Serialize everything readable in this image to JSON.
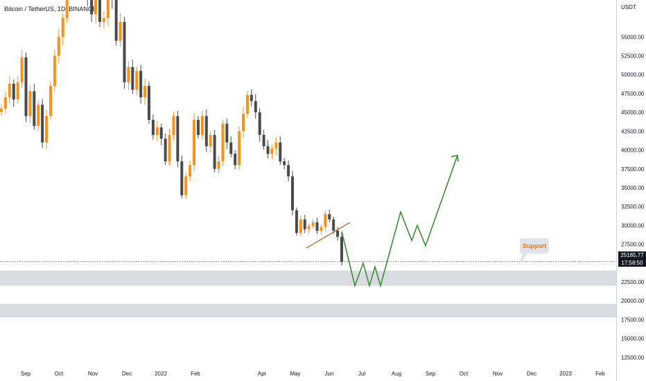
{
  "header": {
    "title": "Bitcoin / TetherUS, 1D, BINANCE",
    "currency": "USDT"
  },
  "colors": {
    "up": "#f7931a",
    "down": "#4a4a4a",
    "projection": "#3d8b37",
    "trendline": "#b5651d",
    "zone": "#d9dbe0",
    "callout": "#e0e3eb"
  },
  "price_badge": {
    "price": "25185.77",
    "countdown": "17:58:50"
  },
  "annotation": {
    "label": "Support"
  },
  "chart_data": {
    "type": "candlestick",
    "title": "Bitcoin / TetherUS, 1D, BINANCE",
    "ylabel": "USDT",
    "ylim": [
      11200,
      59900
    ],
    "y_ticks": [
      "55000.00",
      "52500.00",
      "50000.00",
      "47500.00",
      "45000.00",
      "42500.00",
      "40000.00",
      "37500.00",
      "35000.00",
      "32500.00",
      "30000.00",
      "27500.00",
      "22500.00",
      "20000.00",
      "17500.00",
      "15000.00",
      "12500.00"
    ],
    "x_ticks": [
      "Sep",
      "Oct",
      "Nov",
      "Dec",
      "2022",
      "Feb",
      "Apr",
      "May",
      "Jun",
      "Jul",
      "Aug",
      "Sep",
      "Oct",
      "Nov",
      "Dec",
      "2023",
      "Feb"
    ],
    "last_price": 25185.77,
    "support_zones": [
      [
        22000,
        24000
      ],
      [
        17800,
        19600
      ]
    ],
    "trendline": {
      "from": [
        27000,
        "May"
      ],
      "to": [
        30400,
        "Jun"
      ]
    },
    "projection_path": [
      29200,
      22000,
      25000,
      22000,
      24500,
      22000,
      31800,
      28000,
      30000,
      27300,
      39300
    ],
    "price_path": [
      45500,
      47000,
      48800,
      46700,
      49000,
      52300,
      44500,
      47800,
      43200,
      46000,
      41000,
      44500,
      48500,
      52500,
      55000,
      57500,
      62000,
      64500,
      66500,
      61500,
      64000,
      60000,
      58000,
      61500,
      57000,
      57500,
      62000,
      60000,
      54500,
      57000,
      49000,
      51000,
      48000,
      50500,
      47000,
      48500,
      44000,
      42000,
      43000,
      41500,
      38500,
      42000,
      44500,
      38500,
      34000,
      36500,
      38000,
      44000,
      42000,
      44500,
      40500,
      42000,
      37500,
      38500,
      43500,
      41000,
      39500,
      38000,
      42500,
      44800,
      47300,
      46500,
      45000,
      42000,
      40500,
      39500,
      40200,
      41000,
      38500,
      38000,
      36500,
      32000,
      29000,
      30800,
      29500,
      29900,
      30400,
      29300,
      29800,
      31500,
      30800,
      29300,
      28500,
      25200
    ],
    "price_path_order": "sequential daily-ish closes across the visible history, oldest first"
  }
}
